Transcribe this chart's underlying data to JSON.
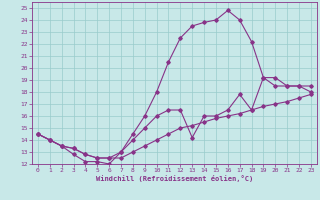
{
  "xlabel": "Windchill (Refroidissement éolien,°C)",
  "bg_color": "#c8e8e8",
  "line_color": "#883388",
  "grid_color": "#99cccc",
  "xlim": [
    -0.5,
    23.5
  ],
  "ylim": [
    12,
    25.5
  ],
  "xticks": [
    0,
    1,
    2,
    3,
    4,
    5,
    6,
    7,
    8,
    9,
    10,
    11,
    12,
    13,
    14,
    15,
    16,
    17,
    18,
    19,
    20,
    21,
    22,
    23
  ],
  "yticks": [
    12,
    13,
    14,
    15,
    16,
    17,
    18,
    19,
    20,
    21,
    22,
    23,
    24,
    25
  ],
  "line1_x": [
    0,
    1,
    2,
    3,
    4,
    5,
    6,
    7,
    8,
    9,
    10,
    11,
    12,
    13,
    14,
    15,
    16,
    17,
    18,
    19,
    20,
    21,
    22,
    23
  ],
  "line1_y": [
    14.5,
    14.0,
    13.5,
    13.3,
    12.8,
    12.5,
    12.5,
    12.5,
    13.0,
    13.5,
    14.0,
    14.5,
    15.0,
    15.2,
    15.5,
    15.8,
    16.0,
    16.2,
    16.5,
    16.8,
    17.0,
    17.2,
    17.5,
    17.8
  ],
  "line2_x": [
    0,
    1,
    2,
    3,
    4,
    5,
    6,
    7,
    8,
    9,
    10,
    11,
    12,
    13,
    14,
    15,
    16,
    17,
    18,
    19,
    20,
    21,
    22,
    23
  ],
  "line2_y": [
    14.5,
    14.0,
    13.5,
    13.3,
    12.8,
    12.5,
    12.5,
    13.0,
    14.5,
    16.0,
    18.0,
    20.5,
    22.5,
    23.5,
    23.8,
    24.0,
    24.8,
    24.0,
    22.2,
    19.2,
    18.5,
    18.5,
    18.5,
    18.5
  ],
  "line3_x": [
    0,
    1,
    2,
    3,
    4,
    5,
    6,
    7,
    8,
    9,
    10,
    11,
    12,
    13,
    14,
    15,
    16,
    17,
    18,
    19,
    20,
    21,
    22,
    23
  ],
  "line3_y": [
    14.5,
    14.0,
    13.5,
    12.8,
    12.2,
    12.2,
    12.0,
    13.0,
    14.0,
    15.0,
    16.0,
    16.5,
    16.5,
    14.2,
    16.0,
    16.0,
    16.5,
    17.8,
    16.5,
    19.2,
    19.2,
    18.5,
    18.5,
    18.0
  ]
}
